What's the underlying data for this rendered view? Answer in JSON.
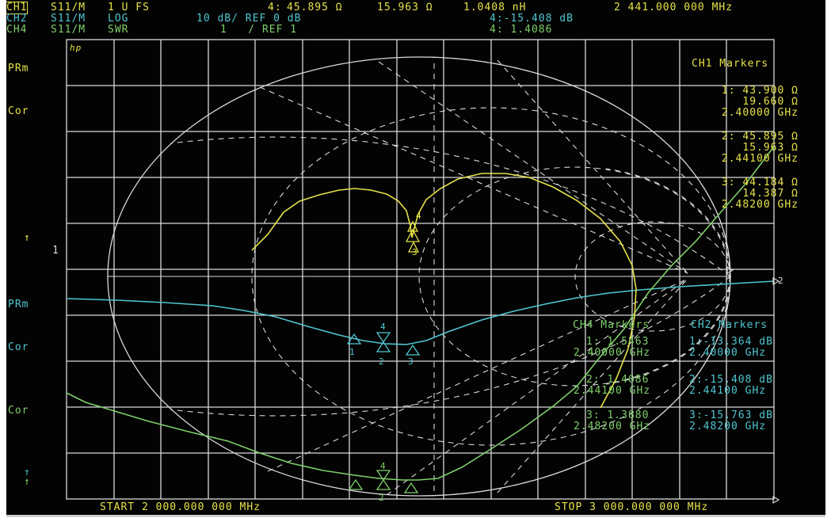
{
  "header": {
    "ch1": {
      "id": "CH1",
      "param": "S11/M",
      "format": "1 U FS",
      "m_label": "4:",
      "m_r": "45.895 Ω",
      "m_x": "15.963 Ω",
      "m_l": "1.0408 nH",
      "freq": "2 441.000 000 MHz"
    },
    "ch2": {
      "id": "CH2",
      "param": "S11/M",
      "format": "LOG",
      "scale": "10 dB/ REF 0 dB",
      "m_val": "4:-15.408 dB"
    },
    "ch4": {
      "id": "CH4",
      "param": "S11/M",
      "format": "SWR",
      "scale": "1   / REF 1",
      "m_val": "4: 1.4086"
    }
  },
  "logo": "hp",
  "left_labels": [
    "PRm",
    "Cor",
    "↑",
    "1",
    "PRm",
    "Cor",
    "Cor",
    "↑",
    "↑"
  ],
  "ch1_markers": {
    "title": "CH1 Markers",
    "items": [
      {
        "line1": "1: 43.900 Ω",
        "line2": "19.660 Ω",
        "line3": "2.40000 GHz"
      },
      {
        "line1": "2: 45.895 Ω",
        "line2": "15.963 Ω",
        "line3": "2.44100 GHz"
      },
      {
        "line1": "3: 44.184 Ω",
        "line2": "14.387 Ω",
        "line3": "2.48200 GHz"
      }
    ]
  },
  "ch4_markers": {
    "title": "CH4 Markers",
    "items": [
      {
        "val": "1: 1.5463",
        "freq": "2.40000 GHz"
      },
      {
        "val": "2: 1.4086",
        "freq": "2.44100 GHz"
      },
      {
        "val": "3: 1.3880",
        "freq": "2.48200 GHz"
      }
    ]
  },
  "ch2_markers": {
    "title": "CH2 Markers",
    "items": [
      {
        "val": "1:-13.364 dB",
        "freq": "2.40000 GHz"
      },
      {
        "val": "2:-15.408 dB",
        "freq": "2.44100 GHz"
      },
      {
        "val": "3:-15.763 dB",
        "freq": "2.48200 GHz"
      }
    ]
  },
  "footer": {
    "start": "START 2 000.000 000 MHz",
    "stop": "STOP 3 000.000 000 MHz"
  },
  "marker_numbers": [
    "1",
    "2",
    "3",
    "4"
  ],
  "right_edge_label": "2",
  "colors": {
    "ch1": "#e6e24a",
    "ch2": "#4fc6d0",
    "ch4": "#7fcf6a",
    "grid": "#d9d9d9"
  }
}
